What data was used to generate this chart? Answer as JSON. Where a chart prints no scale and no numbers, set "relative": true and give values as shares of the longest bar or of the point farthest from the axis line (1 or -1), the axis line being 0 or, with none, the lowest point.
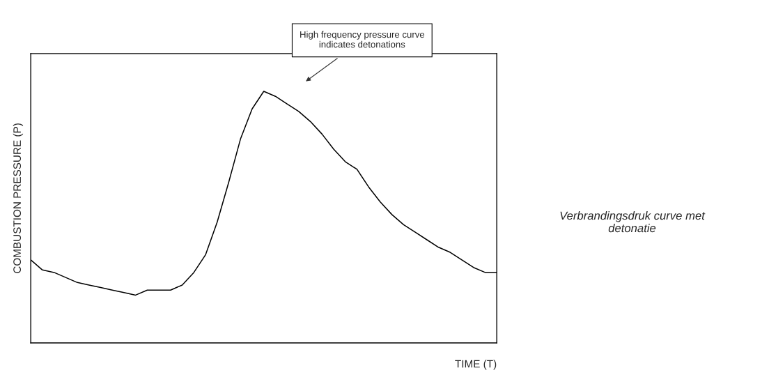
{
  "chart_data": {
    "type": "line",
    "relative": true,
    "xlabel": "TIME (T)",
    "ylabel": "COMBUSTION PRESSURE (P)",
    "annotations": [
      "High frequency pressure curve\nindicates detonations",
      "Verbrandingsdruk curve met\ndetonatie"
    ],
    "categories": [
      null,
      null,
      null,
      null,
      null,
      null,
      null,
      null,
      null,
      null,
      null,
      null,
      null,
      null,
      null,
      null,
      null,
      null,
      null,
      null,
      null,
      null,
      null,
      null,
      null,
      null,
      null,
      null,
      null,
      null,
      null,
      null,
      null,
      null,
      null,
      null,
      null,
      null,
      null,
      null,
      null
    ],
    "series": [
      {
        "color": "#000000",
        "values": [
          0.33,
          0.29,
          0.28,
          0.26,
          0.24,
          0.23,
          0.22,
          0.21,
          0.2,
          0.19,
          0.21,
          0.21,
          0.21,
          0.23,
          0.28,
          0.35,
          0.48,
          0.64,
          0.81,
          0.93,
          1,
          0.98,
          0.95,
          0.92,
          0.88,
          0.83,
          0.77,
          0.72,
          0.69,
          0.62,
          0.56,
          0.51,
          0.47,
          0.44,
          0.41,
          0.38,
          0.36,
          0.33,
          0.3,
          0.28,
          0.28
        ]
      }
    ],
    "grid": false,
    "legend": false,
    "marker": "none",
    "line_style": "solid"
  }
}
